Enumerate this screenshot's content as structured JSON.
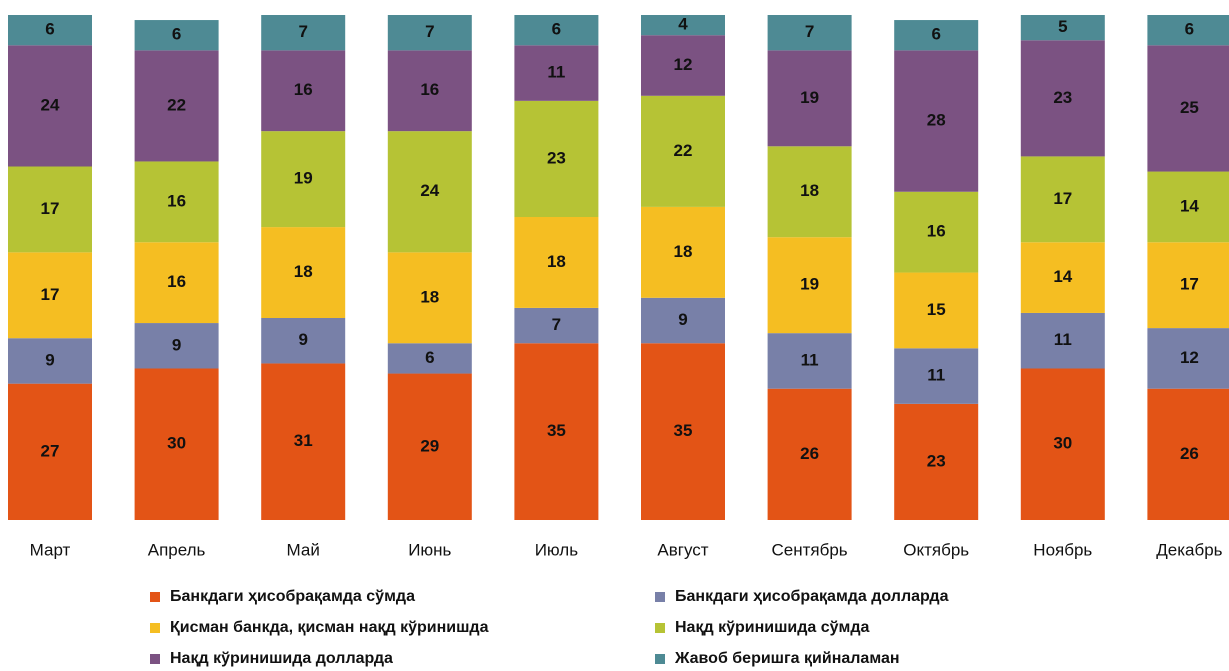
{
  "chart_data": {
    "type": "stacked_bar",
    "categories": [
      "Март",
      "Апрель",
      "Май",
      "Июнь",
      "Июль",
      "Август",
      "Сентябрь",
      "Октябрь",
      "Ноябрь",
      "Декабрь"
    ],
    "ylim": [
      0,
      100
    ],
    "series": [
      {
        "name": "Банкдаги ҳисобрақамда сўмда",
        "color": "#e35416",
        "values": [
          27,
          30,
          31,
          29,
          35,
          35,
          26,
          23,
          30,
          26
        ]
      },
      {
        "name": "Банкдаги ҳисобрақамда долларда",
        "color": "#7880a8",
        "values": [
          9,
          9,
          9,
          6,
          7,
          9,
          11,
          11,
          11,
          12
        ]
      },
      {
        "name": "Қисман банкда, қисман нақд кўринишда",
        "color": "#f5be22",
        "values": [
          17,
          16,
          18,
          18,
          18,
          18,
          19,
          15,
          14,
          17
        ]
      },
      {
        "name": "Нақд кўринишида сўмда",
        "color": "#b6c335",
        "values": [
          17,
          16,
          19,
          24,
          23,
          22,
          18,
          16,
          17,
          14
        ]
      },
      {
        "name": "Нақд кўринишида долларда",
        "color": "#7b5282",
        "values": [
          24,
          22,
          16,
          16,
          11,
          12,
          19,
          28,
          23,
          25
        ]
      },
      {
        "name": "Жавоб беришга қийналаман",
        "color": "#4e8a94",
        "values": [
          6,
          6,
          7,
          7,
          6,
          4,
          7,
          6,
          5,
          6
        ]
      }
    ]
  }
}
